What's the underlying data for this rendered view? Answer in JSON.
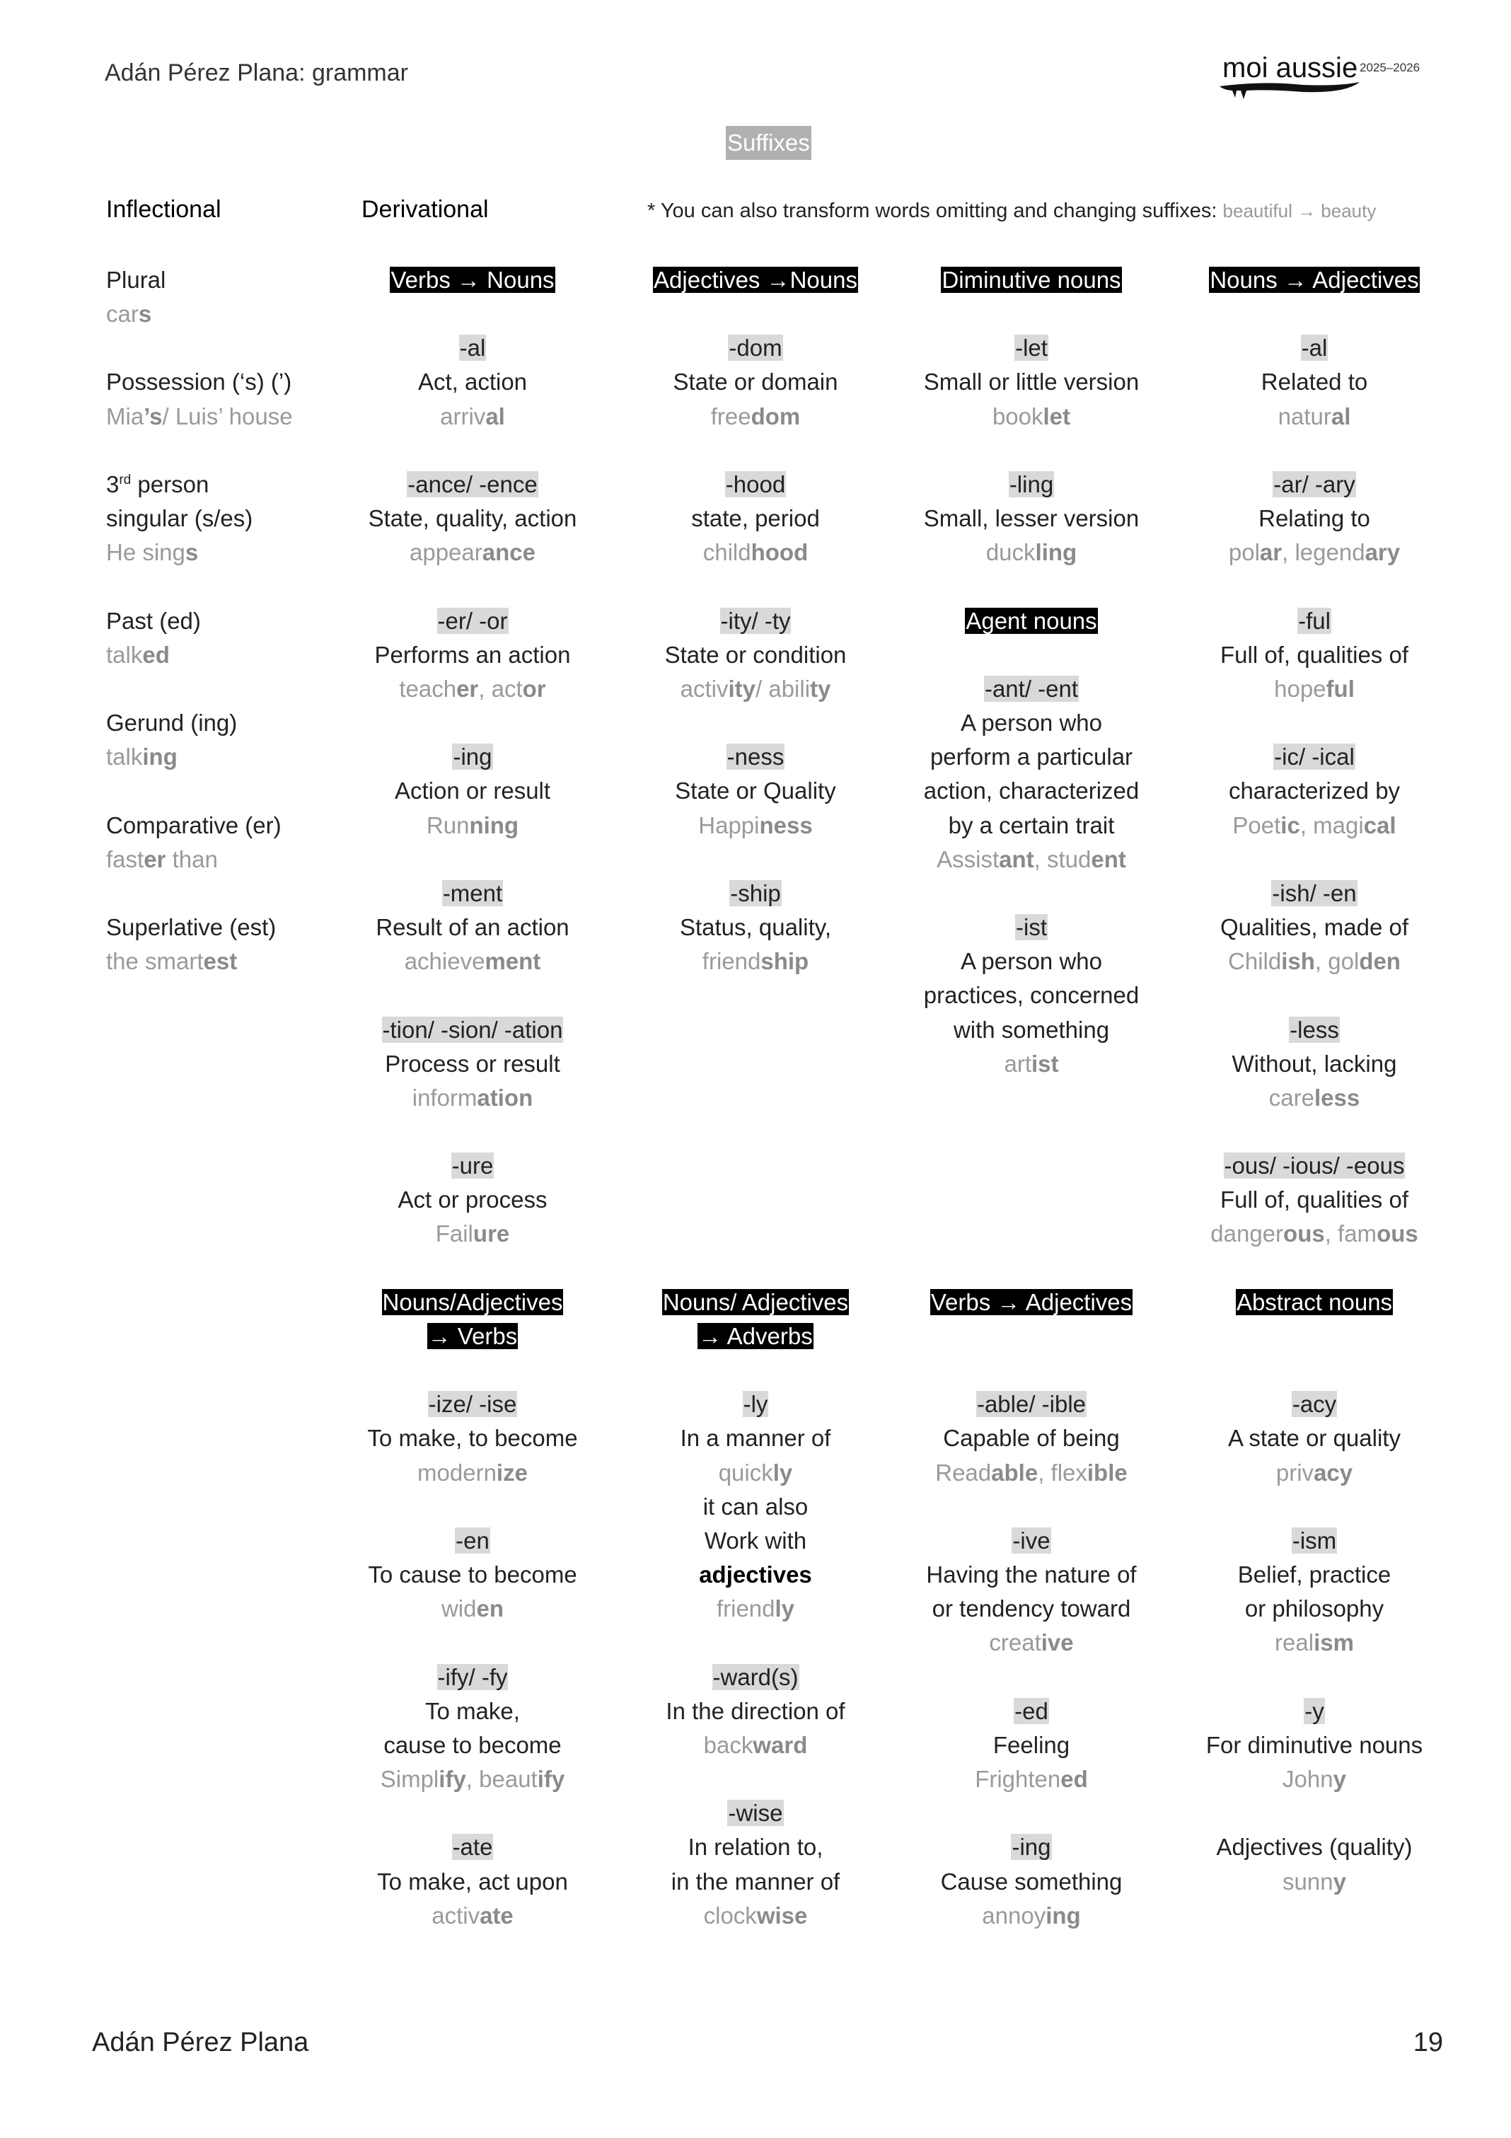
{
  "header": {
    "title": "Adán Pérez Plana: grammar",
    "logo_text": "moi aussie",
    "logo_years": "2025–2026"
  },
  "page_title": "Suffixes",
  "sections": {
    "inflectional": "Inflectional",
    "derivational": "Derivational"
  },
  "note": {
    "text": "* You can also transform words omitting and changing suffixes: ",
    "example": "beautiful → beauty"
  },
  "inflectional": [
    {
      "label": [
        "Plural"
      ],
      "example": [
        "car",
        "s"
      ]
    },
    {
      "label": [
        "Possession (‘s) (’)"
      ],
      "example": [
        "Mia",
        "’s",
        "/ Luis’ house"
      ]
    },
    {
      "label_first": {
        "pre": "3",
        "sup": "rd",
        "post": " person"
      },
      "label": [
        "singular (s/es)"
      ],
      "example": [
        "He sing",
        "s"
      ]
    },
    {
      "label": [
        "Past (ed)"
      ],
      "example": [
        "talk",
        "ed"
      ]
    },
    {
      "label": [
        "Gerund (ing)"
      ],
      "example": [
        "talk",
        "ing"
      ]
    },
    {
      "label": [
        "Comparative (er)"
      ],
      "example": [
        "fast",
        "er",
        " than"
      ]
    },
    {
      "label": [
        "Superlative (est)"
      ],
      "example": [
        "the smart",
        "est"
      ]
    }
  ],
  "columns": [
    {
      "blocks": [
        {
          "header": [
            "Verbs → Nouns"
          ]
        },
        {
          "suffix": "-al",
          "meaning": [
            "Act, action"
          ],
          "example": [
            "arriv",
            "al"
          ]
        },
        {
          "suffix": "-ance/ -ence",
          "meaning": [
            "State, quality, action"
          ],
          "example": [
            "appear",
            "ance"
          ]
        },
        {
          "suffix": "-er/ -or",
          "meaning": [
            "Performs an action"
          ],
          "example": [
            "teach",
            "er",
            ", act",
            "or"
          ]
        },
        {
          "suffix": "-ing",
          "meaning": [
            "Action or result"
          ],
          "example": [
            "Run",
            "ning"
          ]
        },
        {
          "suffix": "-ment",
          "meaning": [
            "Result of an action"
          ],
          "example": [
            "achieve",
            "ment"
          ]
        },
        {
          "suffix": "-tion/ -sion/ -ation",
          "meaning": [
            "Process or result"
          ],
          "example": [
            "inform",
            "ation"
          ]
        },
        {
          "suffix": "-ure",
          "meaning": [
            "Act or process"
          ],
          "example": [
            "Fail",
            "ure"
          ]
        },
        {
          "header": [
            "Nouns/Adjectives",
            "→ Verbs"
          ]
        },
        {
          "suffix": "-ize/ -ise",
          "meaning": [
            "To make, to become"
          ],
          "example": [
            "modern",
            "ize"
          ]
        },
        {
          "suffix": "-en",
          "meaning": [
            "To cause to become"
          ],
          "example": [
            "wid",
            "en"
          ]
        },
        {
          "suffix": "-ify/ -fy",
          "meaning": [
            "To make,",
            "cause to become"
          ],
          "example": [
            "Simpl",
            "ify",
            ", beaut",
            "ify"
          ]
        },
        {
          "suffix": "-ate",
          "meaning": [
            "To make, act upon"
          ],
          "example": [
            "activ",
            "ate"
          ]
        }
      ]
    },
    {
      "blocks": [
        {
          "header": [
            "Adjectives →Nouns"
          ]
        },
        {
          "suffix": "-dom",
          "meaning": [
            "State or domain"
          ],
          "example": [
            "free",
            "dom"
          ]
        },
        {
          "suffix": "-hood",
          "meaning": [
            "state, period"
          ],
          "example": [
            "child",
            "hood"
          ]
        },
        {
          "suffix": "-ity/ -ty",
          "meaning": [
            "State or condition"
          ],
          "example": [
            "activ",
            "ity",
            "/ abili",
            "ty"
          ]
        },
        {
          "suffix": "-ness",
          "meaning": [
            "State or Quality"
          ],
          "example": [
            "Happi",
            "ness"
          ]
        },
        {
          "suffix": "-ship",
          "meaning": [
            "Status, quality,"
          ],
          "example": [
            "friend",
            "ship"
          ]
        },
        {
          "header": [
            "Nouns/ Adjectives",
            "→ Adverbs"
          ]
        },
        {
          "suffix": "-ly",
          "meaning": [
            "In a manner of"
          ],
          "example": [
            "quick",
            "ly"
          ],
          "note": [
            "it can also",
            "Work with"
          ],
          "note_strong": "adjectives",
          "example2": [
            "friend",
            "ly"
          ]
        },
        {
          "suffix": "-ward(s)",
          "meaning": [
            "In the direction of"
          ],
          "example": [
            "back",
            "ward"
          ]
        },
        {
          "suffix": "-wise",
          "meaning": [
            "In relation to,",
            "in the manner of"
          ],
          "example": [
            "clock",
            "wise"
          ]
        }
      ]
    },
    {
      "blocks": [
        {
          "header": [
            "Diminutive nouns"
          ]
        },
        {
          "suffix": "-let",
          "meaning": [
            "Small or little version"
          ],
          "example": [
            "book",
            "let"
          ]
        },
        {
          "suffix": "-ling",
          "meaning": [
            "Small, lesser version"
          ],
          "example": [
            "duck",
            "ling"
          ]
        },
        {
          "header": [
            "Agent nouns"
          ]
        },
        {
          "suffix": "-ant/ -ent",
          "meaning": [
            "A person who",
            "perform a particular",
            "action, characterized",
            "by a certain trait"
          ],
          "example": [
            "Assist",
            "ant",
            ", stud",
            "ent"
          ]
        },
        {
          "suffix": "-ist",
          "meaning": [
            "A person who",
            "practices, concerned",
            "with something"
          ],
          "example": [
            "art",
            "ist"
          ]
        },
        {
          "header": [
            "Verbs → Adjectives"
          ]
        },
        {
          "suffix": "-able/ -ible",
          "meaning": [
            "Capable of being"
          ],
          "example": [
            "Read",
            "able",
            ", flex",
            "ible"
          ]
        },
        {
          "suffix": "-ive",
          "meaning": [
            "Having the nature of",
            "or tendency toward"
          ],
          "example": [
            "creat",
            "ive"
          ]
        },
        {
          "suffix": "-ed",
          "meaning": [
            "Feeling"
          ],
          "example": [
            "Frighten",
            "ed"
          ]
        },
        {
          "suffix": "-ing",
          "meaning": [
            "Cause something"
          ],
          "example": [
            "annoy",
            "ing"
          ]
        }
      ]
    },
    {
      "blocks": [
        {
          "header": [
            "Nouns → Adjectives"
          ]
        },
        {
          "suffix": "-al",
          "meaning": [
            "Related to"
          ],
          "example": [
            "natur",
            "al"
          ]
        },
        {
          "suffix": "-ar/ -ary",
          "meaning": [
            "Relating to"
          ],
          "example": [
            "pol",
            "ar",
            ", legend",
            "ary"
          ]
        },
        {
          "suffix": "-ful",
          "meaning": [
            "Full of, qualities of"
          ],
          "example": [
            "hope",
            "ful"
          ]
        },
        {
          "suffix": "-ic/ -ical",
          "meaning": [
            "characterized by"
          ],
          "example": [
            "Poet",
            "ic",
            ", magi",
            "cal"
          ]
        },
        {
          "suffix": "-ish/ -en",
          "meaning": [
            "Qualities, made of"
          ],
          "example": [
            "Child",
            "ish",
            ", gol",
            "den"
          ]
        },
        {
          "suffix": "-less",
          "meaning": [
            "Without, lacking"
          ],
          "example": [
            "care",
            "less"
          ]
        },
        {
          "suffix": "-ous/ -ious/ -eous",
          "meaning": [
            "Full of, qualities of"
          ],
          "example": [
            "danger",
            "ous",
            ", fam",
            "ous"
          ]
        },
        {
          "header": [
            "Abstract nouns"
          ]
        },
        {
          "suffix": "-acy",
          "meaning": [
            "A state or quality"
          ],
          "example": [
            "priv",
            "acy"
          ]
        },
        {
          "suffix": "-ism",
          "meaning": [
            "Belief, practice",
            "or philosophy"
          ],
          "example": [
            "real",
            "ism"
          ]
        },
        {
          "suffix": "-y",
          "meaning": [
            "For diminutive nouns"
          ],
          "example": [
            "John",
            "y"
          ]
        },
        {
          "meaning": [
            "Adjectives (quality)"
          ],
          "example": [
            "sunn",
            "y"
          ]
        }
      ]
    }
  ],
  "footer": {
    "author": "Adán Pérez Plana",
    "page_number": "19"
  }
}
